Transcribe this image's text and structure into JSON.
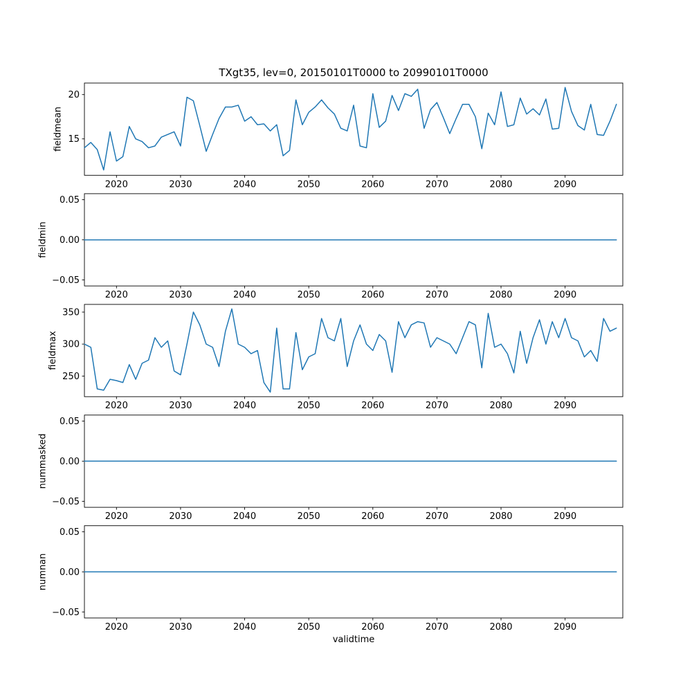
{
  "figure": {
    "title": "TXgt35, lev=0, 20150101T0000 to 20990101T0000",
    "xlabel": "validtime",
    "line_color": "#1f77b4",
    "xlim": [
      2015,
      2099
    ],
    "x_ticks": [
      2020,
      2030,
      2040,
      2050,
      2060,
      2070,
      2080,
      2090
    ],
    "x_tick_labels": [
      "2020",
      "2030",
      "2040",
      "2050",
      "2060",
      "2070",
      "2080",
      "2090"
    ]
  },
  "chart_data": [
    {
      "type": "line",
      "ylabel": "fieldmean",
      "x_start": 2015,
      "x_step": 1,
      "ylim": [
        10.9,
        21.3
      ],
      "yticks": [
        15,
        20
      ],
      "ytick_labels": [
        "15",
        "20"
      ],
      "values": [
        14.0,
        14.6,
        13.8,
        11.5,
        15.8,
        12.5,
        13.0,
        16.4,
        15.0,
        14.7,
        14.0,
        14.2,
        15.2,
        15.5,
        15.8,
        14.2,
        19.7,
        19.3,
        16.5,
        13.6,
        15.5,
        17.3,
        18.6,
        18.6,
        18.8,
        17.0,
        17.5,
        16.6,
        16.7,
        15.9,
        16.6,
        13.1,
        13.7,
        19.4,
        16.6,
        18.0,
        18.6,
        19.4,
        18.5,
        17.8,
        16.2,
        15.9,
        18.8,
        14.2,
        14.0,
        20.1,
        16.3,
        17.0,
        19.9,
        18.2,
        20.1,
        19.8,
        20.6,
        16.2,
        18.3,
        19.1,
        17.4,
        15.6,
        17.3,
        18.9,
        18.9,
        17.5,
        13.9,
        17.9,
        16.6,
        20.3,
        16.4,
        16.6,
        19.6,
        17.8,
        18.4,
        17.7,
        19.5,
        16.1,
        16.2,
        20.8,
        18.1,
        16.5,
        16.0,
        18.9,
        15.5,
        15.4,
        17.0,
        18.9
      ]
    },
    {
      "type": "line",
      "ylabel": "fieldmin",
      "x_start": 2015,
      "x_step": 1,
      "ylim": [
        -0.0575,
        0.0575
      ],
      "yticks": [
        -0.05,
        0,
        0.05
      ],
      "ytick_labels": [
        "−0.05",
        "0.00",
        "0.05"
      ],
      "constant": 0,
      "n_points": 84
    },
    {
      "type": "line",
      "ylabel": "fieldmax",
      "x_start": 2015,
      "x_step": 1,
      "ylim": [
        218,
        362
      ],
      "yticks": [
        250,
        300,
        350
      ],
      "ytick_labels": [
        "250",
        "300",
        "350"
      ],
      "values": [
        300,
        295,
        230,
        228,
        245,
        243,
        240,
        268,
        245,
        270,
        275,
        310,
        295,
        305,
        258,
        252,
        300,
        350,
        330,
        300,
        295,
        265,
        320,
        355,
        300,
        295,
        285,
        290,
        240,
        225,
        325,
        230,
        230,
        318,
        260,
        280,
        285,
        340,
        310,
        305,
        340,
        265,
        305,
        330,
        300,
        290,
        315,
        305,
        256,
        335,
        310,
        330,
        335,
        333,
        295,
        310,
        305,
        300,
        285,
        310,
        335,
        330,
        263,
        348,
        295,
        300,
        285,
        255,
        320,
        270,
        310,
        338,
        300,
        335,
        310,
        340,
        310,
        305,
        280,
        290,
        273,
        340,
        320,
        325
      ]
    },
    {
      "type": "line",
      "ylabel": "nummasked",
      "x_start": 2015,
      "x_step": 1,
      "ylim": [
        -0.0575,
        0.0575
      ],
      "yticks": [
        -0.05,
        0,
        0.05
      ],
      "ytick_labels": [
        "−0.05",
        "0.00",
        "0.05"
      ],
      "constant": 0,
      "n_points": 84
    },
    {
      "type": "line",
      "ylabel": "numnan",
      "x_start": 2015,
      "x_step": 1,
      "ylim": [
        -0.0575,
        0.0575
      ],
      "yticks": [
        -0.05,
        0,
        0.05
      ],
      "ytick_labels": [
        "−0.05",
        "0.00",
        "0.05"
      ],
      "constant": 0,
      "n_points": 84
    }
  ]
}
